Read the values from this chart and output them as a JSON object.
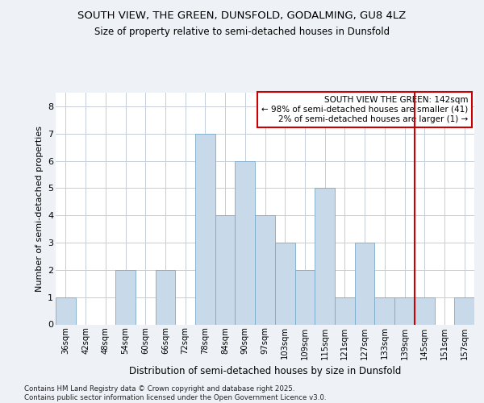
{
  "title": "SOUTH VIEW, THE GREEN, DUNSFOLD, GODALMING, GU8 4LZ",
  "subtitle": "Size of property relative to semi-detached houses in Dunsfold",
  "xlabel": "Distribution of semi-detached houses by size in Dunsfold",
  "ylabel": "Number of semi-detached properties",
  "categories": [
    "36sqm",
    "42sqm",
    "48sqm",
    "54sqm",
    "60sqm",
    "66sqm",
    "72sqm",
    "78sqm",
    "84sqm",
    "90sqm",
    "97sqm",
    "103sqm",
    "109sqm",
    "115sqm",
    "121sqm",
    "127sqm",
    "133sqm",
    "139sqm",
    "145sqm",
    "151sqm",
    "157sqm"
  ],
  "values": [
    1,
    0,
    0,
    2,
    0,
    2,
    0,
    7,
    4,
    6,
    4,
    3,
    2,
    5,
    1,
    3,
    1,
    1,
    1,
    0,
    1
  ],
  "bar_color": "#c8daea",
  "bar_edge_color": "#7aaac8",
  "red_line_index": 17.5,
  "red_line_color": "#cc0000",
  "annotation_text": "SOUTH VIEW THE GREEN: 142sqm\n← 98% of semi-detached houses are smaller (41)\n2% of semi-detached houses are larger (1) →",
  "ylim": [
    0,
    8.5
  ],
  "yticks": [
    0,
    1,
    2,
    3,
    4,
    5,
    6,
    7,
    8
  ],
  "footer": "Contains HM Land Registry data © Crown copyright and database right 2025.\nContains public sector information licensed under the Open Government Licence v3.0.",
  "bg_color": "#eef2f7",
  "plot_bg_color": "#ffffff",
  "grid_color": "#c5cdd8"
}
